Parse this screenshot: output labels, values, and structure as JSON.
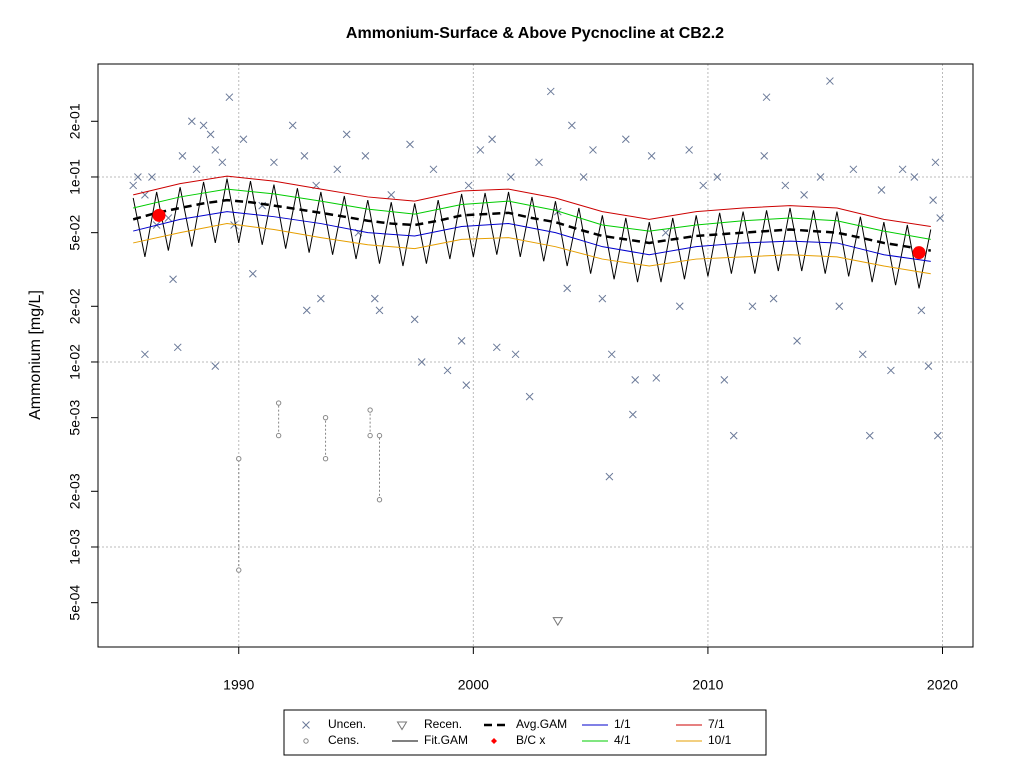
{
  "chart_data": {
    "type": "scatter-line",
    "title": "Ammonium-Surface & Above Pycnocline at CB2.2",
    "y_label": "Ammonium [mg/L]",
    "log_y": true,
    "grid": true,
    "xlim": [
      1984.0,
      2021.3
    ],
    "xticks": [
      1990,
      2000,
      2010,
      2020
    ],
    "ylim": [
      0.000288,
      0.408
    ],
    "yticks": [
      {
        "value": 0.0005,
        "label": "5e-04"
      },
      {
        "value": 0.001,
        "label": "1e-03"
      },
      {
        "value": 0.002,
        "label": "2e-03"
      },
      {
        "value": 0.005,
        "label": "5e-03"
      },
      {
        "value": 0.01,
        "label": "1e-02"
      },
      {
        "value": 0.02,
        "label": "2e-02"
      },
      {
        "value": 0.05,
        "label": "5e-02"
      },
      {
        "value": 0.1,
        "label": "1e-01"
      },
      {
        "value": 0.2,
        "label": "2e-01"
      }
    ],
    "series": [
      {
        "name": "Uncen.",
        "style": "cross",
        "color": "#6b7a99",
        "x": [
          1985.5,
          1985.7,
          1986,
          1986.3,
          1986.5,
          1986,
          1987,
          1987.2,
          1987.4,
          1987.6,
          1988,
          1988.2,
          1988.5,
          1988.8,
          1989,
          1989.3,
          1989.6,
          1989.8,
          1989,
          1990.2,
          1990.6,
          1991,
          1991.5,
          1992.3,
          1992.8,
          1992.9,
          1993.3,
          1993.5,
          1994.2,
          1994.6,
          1995.1,
          1995.4,
          1995.8,
          1996,
          1996.5,
          1997.3,
          1997.5,
          1997.8,
          1998.3,
          1998.9,
          1999.5,
          1999.8,
          1999.7,
          2000.3,
          2000.8,
          2001,
          2001.6,
          2001.8,
          2002.4,
          2002.8,
          2003.3,
          2003.6,
          2004,
          2004.2,
          2004.7,
          2005.1,
          2005.5,
          2005.9,
          2005.8,
          2006.5,
          2006.8,
          2006.9,
          2007.6,
          2007.8,
          2008.2,
          2008.8,
          2009.2,
          2009.8,
          2010.4,
          2010.7,
          2011.1,
          2011.9,
          2012.4,
          2012.5,
          2012.8,
          2013.3,
          2013.8,
          2014.1,
          2014.8,
          2015.2,
          2015.6,
          2016.2,
          2016.6,
          2016.9,
          2017.4,
          2017.8,
          2018.3,
          2018.8,
          2019.1,
          2019.4,
          2019.6,
          2019.7,
          2019.8,
          2019.9
        ],
        "values": [
          0.09,
          0.1,
          0.08,
          0.1,
          0.055,
          0.011,
          0.06,
          0.028,
          0.012,
          0.13,
          0.2,
          0.11,
          0.19,
          0.17,
          0.14,
          0.12,
          0.27,
          0.055,
          0.0095,
          0.16,
          0.03,
          0.07,
          0.12,
          0.19,
          0.13,
          0.019,
          0.09,
          0.022,
          0.11,
          0.17,
          0.05,
          0.13,
          0.022,
          0.019,
          0.08,
          0.15,
          0.017,
          0.01,
          0.11,
          0.009,
          0.013,
          0.09,
          0.0075,
          0.14,
          0.16,
          0.012,
          0.1,
          0.011,
          0.0065,
          0.12,
          0.29,
          0.065,
          0.025,
          0.19,
          0.1,
          0.14,
          0.022,
          0.011,
          0.0024,
          0.16,
          0.0052,
          0.008,
          0.13,
          0.0082,
          0.05,
          0.02,
          0.14,
          0.09,
          0.1,
          0.008,
          0.004,
          0.02,
          0.13,
          0.27,
          0.022,
          0.09,
          0.013,
          0.08,
          0.1,
          0.33,
          0.02,
          0.11,
          0.011,
          0.004,
          0.085,
          0.009,
          0.11,
          0.1,
          0.019,
          0.0095,
          0.075,
          0.12,
          0.004,
          0.06
        ]
      },
      {
        "name": "Cens.",
        "style": "interval",
        "color": "#888888",
        "x": [
          1990,
          1991.7,
          1993.7,
          1995.6,
          1996
        ],
        "values": [
          0.00075,
          0.004,
          0.003,
          0.004,
          0.0018
        ],
        "high": [
          0.003,
          0.006,
          0.005,
          0.0055,
          0.004
        ]
      },
      {
        "name": "Recen.",
        "style": "triangle",
        "color": "#777777",
        "x": [
          2003.6
        ],
        "values": [
          0.0004
        ]
      },
      {
        "name": "Fit.GAM",
        "style": "line",
        "color": "#000000",
        "x": [
          1985.5,
          1986,
          1986.5,
          1987,
          1987.5,
          1988,
          1988.5,
          1989,
          1989.5,
          1990,
          1990.5,
          1991,
          1991.5,
          1992,
          1992.5,
          1993,
          1993.5,
          1994,
          1994.5,
          1995,
          1995.5,
          1996,
          1996.5,
          1997,
          1997.5,
          1998,
          1998.5,
          1999,
          1999.5,
          2000,
          2000.5,
          2001,
          2001.5,
          2002,
          2002.5,
          2003,
          2003.5,
          2004,
          2004.5,
          2005,
          2005.5,
          2006,
          2006.5,
          2007,
          2007.5,
          2008,
          2008.5,
          2009,
          2009.5,
          2010,
          2010.5,
          2011,
          2011.5,
          2012,
          2012.5,
          2013,
          2013.5,
          2014,
          2014.5,
          2015,
          2015.5,
          2016,
          2016.5,
          2017,
          2017.5,
          2018,
          2018.5,
          2019,
          2019.5
        ],
        "values": [
          0.077,
          0.037,
          0.083,
          0.04,
          0.088,
          0.042,
          0.094,
          0.044,
          0.098,
          0.044,
          0.095,
          0.043,
          0.091,
          0.041,
          0.087,
          0.039,
          0.083,
          0.038,
          0.079,
          0.036,
          0.075,
          0.034,
          0.073,
          0.033,
          0.072,
          0.034,
          0.075,
          0.036,
          0.081,
          0.037,
          0.082,
          0.038,
          0.083,
          0.037,
          0.078,
          0.035,
          0.074,
          0.033,
          0.068,
          0.03,
          0.062,
          0.028,
          0.06,
          0.027,
          0.057,
          0.027,
          0.06,
          0.028,
          0.062,
          0.029,
          0.064,
          0.03,
          0.065,
          0.03,
          0.066,
          0.031,
          0.068,
          0.031,
          0.066,
          0.03,
          0.065,
          0.029,
          0.061,
          0.027,
          0.057,
          0.026,
          0.055,
          0.025,
          0.052
        ]
      },
      {
        "name": "Avg.GAM",
        "style": "dashed",
        "color": "#000000",
        "x": [
          1985.5,
          1986.5,
          1987.5,
          1988.5,
          1989.5,
          1990.5,
          1991.5,
          1992.5,
          1993.5,
          1994.5,
          1995.5,
          1996.5,
          1997.5,
          1998.5,
          1999.5,
          2000.5,
          2001.5,
          2002.5,
          2003.5,
          2004.5,
          2005.5,
          2006.5,
          2007.5,
          2008.5,
          2009.5,
          2010.5,
          2011.5,
          2012.5,
          2013.5,
          2014.5,
          2015.5,
          2016.5,
          2017.5,
          2018.5,
          2019.5
        ],
        "values": [
          0.059,
          0.064,
          0.068,
          0.072,
          0.075,
          0.073,
          0.07,
          0.067,
          0.064,
          0.061,
          0.058,
          0.056,
          0.055,
          0.058,
          0.062,
          0.063,
          0.064,
          0.06,
          0.057,
          0.052,
          0.048,
          0.046,
          0.044,
          0.046,
          0.048,
          0.049,
          0.05,
          0.051,
          0.052,
          0.051,
          0.05,
          0.047,
          0.044,
          0.042,
          0.04
        ]
      },
      {
        "name": "B/C x",
        "style": "dot",
        "color": "#ff0000",
        "x": [
          1986.6,
          2019
        ],
        "values": [
          0.062,
          0.039
        ]
      },
      {
        "name": "1/1",
        "style": "line",
        "color": "#0000cc",
        "x": [
          1985.5,
          1987.5,
          1989.5,
          1991.5,
          1993.5,
          1995.5,
          1997.5,
          1999.5,
          2001.5,
          2003.5,
          2005.5,
          2007.5,
          2009.5,
          2011.5,
          2013.5,
          2015.5,
          2017.5,
          2019.5
        ],
        "values": [
          0.051,
          0.059,
          0.065,
          0.061,
          0.056,
          0.05,
          0.048,
          0.054,
          0.056,
          0.05,
          0.042,
          0.038,
          0.042,
          0.044,
          0.045,
          0.044,
          0.038,
          0.035
        ]
      },
      {
        "name": "4/1",
        "style": "line",
        "color": "#00cc00",
        "x": [
          1985.5,
          1987.5,
          1989.5,
          1991.5,
          1993.5,
          1995.5,
          1997.5,
          1999.5,
          2001.5,
          2003.5,
          2005.5,
          2007.5,
          2009.5,
          2011.5,
          2013.5,
          2015.5,
          2017.5,
          2019.5
        ],
        "values": [
          0.068,
          0.078,
          0.086,
          0.081,
          0.074,
          0.067,
          0.063,
          0.071,
          0.074,
          0.066,
          0.055,
          0.051,
          0.055,
          0.058,
          0.06,
          0.058,
          0.051,
          0.046
        ]
      },
      {
        "name": "7/1",
        "style": "line",
        "color": "#cc0000",
        "x": [
          1985.5,
          1987.5,
          1989.5,
          1991.5,
          1993.5,
          1995.5,
          1997.5,
          1999.5,
          2001.5,
          2003.5,
          2005.5,
          2007.5,
          2009.5,
          2011.5,
          2013.5,
          2015.5,
          2017.5,
          2019.5
        ],
        "values": [
          0.08,
          0.092,
          0.101,
          0.095,
          0.086,
          0.078,
          0.074,
          0.084,
          0.086,
          0.077,
          0.065,
          0.059,
          0.065,
          0.068,
          0.07,
          0.068,
          0.059,
          0.054
        ]
      },
      {
        "name": "10/1",
        "style": "line",
        "color": "#e69f00",
        "x": [
          1985.5,
          1987.5,
          1989.5,
          1991.5,
          1993.5,
          1995.5,
          1997.5,
          1999.5,
          2001.5,
          2003.5,
          2005.5,
          2007.5,
          2009.5,
          2011.5,
          2013.5,
          2015.5,
          2017.5,
          2019.5
        ],
        "values": [
          0.044,
          0.05,
          0.056,
          0.052,
          0.047,
          0.043,
          0.041,
          0.046,
          0.047,
          0.042,
          0.036,
          0.033,
          0.036,
          0.037,
          0.038,
          0.037,
          0.033,
          0.03
        ]
      }
    ]
  }
}
